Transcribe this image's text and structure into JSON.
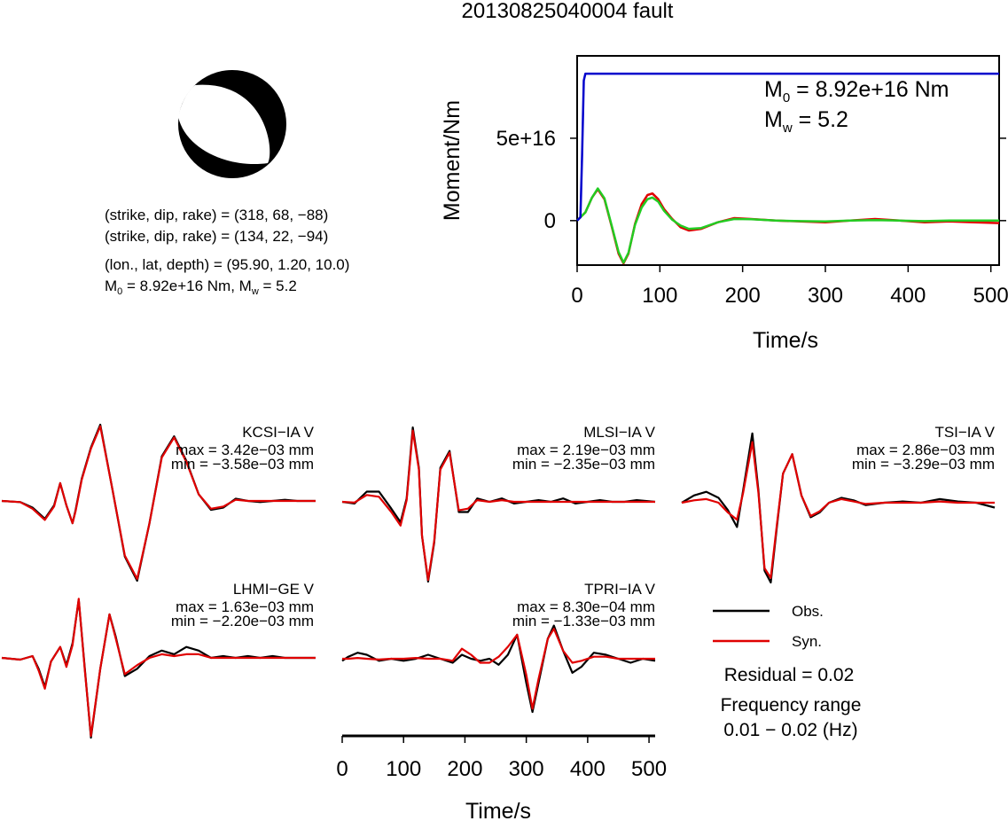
{
  "title": "20130825040004 fault",
  "beachball": {
    "lines": [
      "(strike, dip, rake) = (318, 68, −88)",
      "(strike, dip, rake) = (134, 22, −94)",
      "(lon., lat, depth) = (95.90, 1.20, 10.0)"
    ],
    "m0_label": "M",
    "m0_sub": "0",
    "m0_text": " = 8.92e+16 Nm, M",
    "mw_sub": "w",
    "mw_text": " = 5.2"
  },
  "colors": {
    "obs": "#000000",
    "syn": "#e00000",
    "moment": "#0000cc",
    "stf": "#22cc22"
  },
  "chart_data": [
    {
      "type": "line",
      "name": "moment-rate-function",
      "ylabel": "Moment/Nm",
      "xlabel": "Time/s",
      "xlim": [
        0,
        510
      ],
      "ylim": [
        -27000000000000000,
        100000000000000000
      ],
      "xticks": [
        0,
        100,
        200,
        300,
        400,
        500
      ],
      "ytick_values": [
        0,
        50000000000000000
      ],
      "ytick_labels": [
        "0",
        "5e+16"
      ],
      "annotation": {
        "m0_sym": "M",
        "m0_sub": "0",
        "m0_val": " = 8.92e+16 Nm",
        "mw_sym": "M",
        "mw_sub": "w",
        "mw_val": " = 5.2"
      },
      "series": [
        {
          "name": "cumulative-moment",
          "color": "#0000cc",
          "x": [
            0,
            4,
            6,
            8,
            10,
            510
          ],
          "y": [
            0,
            2000000000000000,
            40000000000000000,
            85000000000000000,
            89200000000000000,
            89200000000000000
          ]
        },
        {
          "name": "red",
          "color": "#e00000",
          "x": [
            0,
            10,
            18,
            25,
            33,
            42,
            50,
            56,
            62,
            70,
            78,
            85,
            91,
            98,
            105,
            115,
            125,
            135,
            150,
            170,
            190,
            210,
            240,
            270,
            300,
            330,
            360,
            390,
            420,
            450,
            480,
            510
          ],
          "y": [
            0,
            5000000000000000,
            14000000000000000,
            19000000000000000,
            13000000000000000,
            -4000000000000000,
            -20000000000000000,
            -26000000000000000,
            -20000000000000000,
            -2000000000000000,
            10000000000000000,
            15500000000000000,
            16500000000000000,
            13000000000000000,
            7000000000000000,
            1000000000000000,
            -4000000000000000,
            -6000000000000000,
            -5000000000000000,
            -1000000000000000,
            1500000000000000,
            1000000000000000,
            0,
            -500000000000000,
            -1000000000000000,
            0,
            1000000000000000,
            0,
            -1000000000000000,
            -500000000000000,
            -1000000000000000,
            -1500000000000000
          ]
        },
        {
          "name": "green",
          "color": "#22cc22",
          "x": [
            0,
            10,
            18,
            25,
            33,
            42,
            50,
            56,
            62,
            70,
            78,
            85,
            91,
            98,
            105,
            115,
            125,
            135,
            150,
            170,
            190,
            210,
            240,
            270,
            300,
            330,
            360,
            390,
            420,
            450,
            480,
            510
          ],
          "y": [
            0,
            5000000000000000,
            14000000000000000,
            19500000000000000,
            13500000000000000,
            -3500000000000000,
            -19000000000000000,
            -25500000000000000,
            -19500000000000000,
            -2500000000000000,
            8000000000000000,
            13000000000000000,
            14000000000000000,
            11500000000000000,
            6000000000000000,
            500000000000000,
            -3000000000000000,
            -5000000000000000,
            -4500000000000000,
            -1000000000000000,
            1000000000000000,
            800000000000000,
            0,
            -300000000000000,
            -500000000000000,
            0,
            300000000000000,
            0,
            -300000000000000,
            0,
            0,
            0
          ]
        }
      ]
    },
    {
      "type": "line",
      "name": "waveform-KCSI",
      "station": "KCSI−IA V",
      "max_text": "max = 3.42e−03 mm",
      "min_text": "min = −3.58e−03 mm",
      "xlim": [
        0,
        510
      ],
      "ylim": [
        -3.58,
        3.42
      ],
      "series": [
        {
          "name": "Obs.",
          "color": "#000000",
          "x": [
            0,
            30,
            50,
            70,
            85,
            95,
            105,
            115,
            120,
            130,
            145,
            160,
            180,
            200,
            220,
            240,
            260,
            280,
            300,
            320,
            340,
            360,
            380,
            400,
            420,
            440,
            460,
            480,
            510
          ],
          "y": [
            0,
            -0.05,
            -0.3,
            -0.8,
            -0.2,
            0.8,
            -0.2,
            -1.0,
            -0.4,
            1.0,
            2.4,
            3.42,
            0.5,
            -2.5,
            -3.58,
            -1.0,
            2.0,
            2.9,
            1.8,
            0.3,
            -0.4,
            -0.3,
            0.1,
            0.0,
            -0.05,
            0.0,
            0.05,
            0.0,
            0.0
          ]
        },
        {
          "name": "Syn.",
          "color": "#e00000",
          "x": [
            0,
            30,
            50,
            70,
            85,
            95,
            105,
            115,
            120,
            130,
            145,
            160,
            180,
            200,
            220,
            240,
            260,
            280,
            300,
            320,
            340,
            360,
            380,
            400,
            420,
            440,
            460,
            480,
            510
          ],
          "y": [
            0,
            -0.05,
            -0.35,
            -0.85,
            -0.25,
            0.8,
            -0.2,
            -1.0,
            -0.45,
            0.95,
            2.35,
            3.35,
            0.5,
            -2.45,
            -3.5,
            -1.0,
            1.95,
            2.85,
            1.75,
            0.3,
            -0.35,
            -0.25,
            0.05,
            0.0,
            0.0,
            0.0,
            0.0,
            0.0,
            0.0
          ]
        }
      ]
    },
    {
      "type": "line",
      "name": "waveform-MLSI",
      "station": "MLSI−IA V",
      "max_text": "max = 2.19e−03 mm",
      "min_text": "min = −2.35e−03 mm",
      "xlim": [
        0,
        510
      ],
      "ylim": [
        -2.35,
        2.19
      ],
      "series": [
        {
          "name": "Obs.",
          "color": "#000000",
          "x": [
            0,
            20,
            40,
            60,
            80,
            95,
            105,
            115,
            125,
            130,
            140,
            150,
            160,
            175,
            190,
            205,
            220,
            240,
            260,
            280,
            300,
            320,
            340,
            360,
            380,
            400,
            420,
            440,
            460,
            480,
            510
          ],
          "y": [
            0,
            -0.05,
            0.3,
            0.3,
            -0.2,
            -0.6,
            0.1,
            2.19,
            1.0,
            -1.0,
            -2.35,
            -1.2,
            1.0,
            1.5,
            -0.3,
            -0.3,
            0.1,
            0.0,
            0.1,
            -0.05,
            0.0,
            0.05,
            0.0,
            0.1,
            -0.05,
            0.0,
            0.05,
            0.0,
            0.0,
            0.05,
            0.0
          ]
        },
        {
          "name": "Syn.",
          "color": "#e00000",
          "x": [
            0,
            20,
            40,
            60,
            80,
            95,
            105,
            115,
            125,
            130,
            140,
            150,
            160,
            175,
            190,
            205,
            220,
            240,
            260,
            280,
            300,
            320,
            340,
            360,
            380,
            400,
            420,
            440,
            460,
            480,
            510
          ],
          "y": [
            0,
            -0.02,
            0.2,
            0.15,
            -0.3,
            -0.7,
            0.05,
            2.1,
            0.95,
            -1.0,
            -2.3,
            -1.15,
            0.95,
            1.45,
            -0.25,
            -0.2,
            0.05,
            0.0,
            0.05,
            0.0,
            0.0,
            0.0,
            0.0,
            0.0,
            0.0,
            0.0,
            0.0,
            0.0,
            0.0,
            0.0,
            0.0
          ]
        }
      ]
    },
    {
      "type": "line",
      "name": "waveform-TSI",
      "station": "TSI−IA V",
      "max_text": "max = 2.86e−03 mm",
      "min_text": "min = −3.29e−03 mm",
      "xlim": [
        0,
        510
      ],
      "ylim": [
        -3.29,
        2.86
      ],
      "series": [
        {
          "name": "Obs.",
          "color": "#000000",
          "x": [
            0,
            20,
            40,
            60,
            75,
            90,
            100,
            115,
            125,
            135,
            145,
            155,
            165,
            180,
            195,
            210,
            225,
            240,
            260,
            280,
            300,
            330,
            360,
            390,
            420,
            450,
            480,
            510
          ],
          "y": [
            0,
            0.3,
            0.45,
            0.2,
            -0.3,
            -1.0,
            0.5,
            2.86,
            0.5,
            -2.8,
            -3.29,
            -1.0,
            1.2,
            2.0,
            0.3,
            -0.6,
            -0.4,
            0.0,
            0.2,
            0.1,
            -0.1,
            0.0,
            0.05,
            0.0,
            0.15,
            0.05,
            0.0,
            -0.2
          ]
        },
        {
          "name": "Syn.",
          "color": "#e00000",
          "x": [
            0,
            20,
            40,
            60,
            75,
            90,
            100,
            115,
            125,
            135,
            145,
            155,
            165,
            180,
            195,
            210,
            225,
            240,
            260,
            280,
            300,
            330,
            360,
            390,
            420,
            450,
            480,
            510
          ],
          "y": [
            0,
            0.1,
            0.15,
            0.0,
            -0.4,
            -0.7,
            0.4,
            2.5,
            0.4,
            -2.7,
            -3.1,
            -0.9,
            1.2,
            2.0,
            0.3,
            -0.55,
            -0.35,
            0.0,
            0.15,
            0.05,
            -0.05,
            0.0,
            0.0,
            0.0,
            0.05,
            0.0,
            0.0,
            0.0
          ]
        }
      ]
    },
    {
      "type": "line",
      "name": "waveform-LHMI",
      "station": "LHMI−GE V",
      "max_text": "max = 1.63e−03 mm",
      "min_text": "min = −2.20e−03 mm",
      "xlim": [
        0,
        510
      ],
      "ylim": [
        -2.2,
        1.63
      ],
      "series": [
        {
          "name": "Obs.",
          "color": "#000000",
          "x": [
            0,
            30,
            50,
            60,
            70,
            80,
            95,
            105,
            115,
            125,
            135,
            145,
            160,
            175,
            185,
            200,
            220,
            240,
            260,
            280,
            300,
            320,
            340,
            360,
            380,
            400,
            420,
            440,
            460,
            480,
            510
          ],
          "y": [
            0,
            -0.05,
            0.05,
            -0.3,
            -0.8,
            -0.1,
            0.3,
            -0.2,
            0.4,
            1.6,
            -0.3,
            -2.2,
            -0.3,
            1.2,
            0.6,
            -0.5,
            -0.3,
            0.05,
            0.2,
            0.1,
            0.3,
            0.2,
            0.0,
            0.05,
            0.0,
            0.05,
            0.0,
            0.05,
            0.0,
            0.0,
            0.0
          ]
        },
        {
          "name": "Syn.",
          "color": "#e00000",
          "x": [
            0,
            30,
            50,
            60,
            70,
            80,
            95,
            105,
            115,
            125,
            135,
            145,
            160,
            175,
            185,
            200,
            220,
            240,
            260,
            280,
            300,
            320,
            340,
            360,
            380,
            400,
            420,
            440,
            460,
            480,
            510
          ],
          "y": [
            0,
            -0.05,
            0.05,
            -0.35,
            -0.85,
            -0.1,
            0.3,
            -0.25,
            0.35,
            1.63,
            -0.35,
            -2.15,
            -0.3,
            1.2,
            0.55,
            -0.45,
            -0.2,
            0.0,
            0.1,
            0.05,
            0.1,
            0.1,
            0.0,
            0.0,
            0.0,
            0.0,
            0.0,
            0.0,
            0.0,
            0.0,
            0.0
          ]
        }
      ]
    },
    {
      "type": "line",
      "name": "waveform-TPRI",
      "station": "TPRI−IA V",
      "max_text": "max = 8.30e−04 mm",
      "min_text": "min = −1.33e−03 mm",
      "xlim": [
        0,
        510
      ],
      "ylim": [
        -1.33,
        0.83
      ],
      "series": [
        {
          "name": "Obs.",
          "color": "#000000",
          "x": [
            0,
            10,
            25,
            40,
            60,
            80,
            100,
            120,
            140,
            160,
            180,
            195,
            210,
            225,
            240,
            255,
            270,
            285,
            300,
            310,
            320,
            335,
            345,
            360,
            375,
            390,
            410,
            430,
            450,
            470,
            490,
            510
          ],
          "y": [
            -0.05,
            0.05,
            0.15,
            0.1,
            -0.05,
            0.0,
            -0.05,
            0.0,
            0.1,
            0.0,
            -0.1,
            0.1,
            0.0,
            -0.05,
            0.0,
            -0.15,
            0.1,
            0.6,
            -0.6,
            -1.33,
            -0.6,
            0.5,
            0.83,
            0.2,
            -0.35,
            -0.2,
            0.15,
            0.1,
            0.0,
            -0.1,
            0.0,
            -0.05
          ]
        },
        {
          "name": "Syn.",
          "color": "#e00000",
          "x": [
            0,
            10,
            25,
            40,
            60,
            80,
            100,
            120,
            140,
            160,
            180,
            195,
            210,
            225,
            240,
            255,
            270,
            285,
            300,
            310,
            320,
            335,
            345,
            360,
            375,
            390,
            410,
            430,
            450,
            470,
            490,
            510
          ],
          "y": [
            0.0,
            0.0,
            0.02,
            0.0,
            -0.02,
            0.0,
            0.0,
            0.02,
            0.0,
            0.0,
            -0.05,
            0.25,
            0.1,
            -0.1,
            -0.1,
            0.05,
            0.3,
            0.6,
            -0.4,
            -1.25,
            -0.5,
            0.5,
            0.75,
            0.2,
            -0.1,
            -0.05,
            0.05,
            0.05,
            0.0,
            0.0,
            0.0,
            0.0
          ]
        }
      ]
    }
  ],
  "wave_axis": {
    "xlabel": "Time/s",
    "xticks": [
      0,
      100,
      200,
      300,
      400,
      500
    ]
  },
  "legend": {
    "obs_label": "Obs.",
    "syn_label": "Syn.",
    "residual": "Residual = 0.02",
    "freq_title": "Frequency range",
    "freq_value": "0.01 − 0.02 (Hz)"
  }
}
